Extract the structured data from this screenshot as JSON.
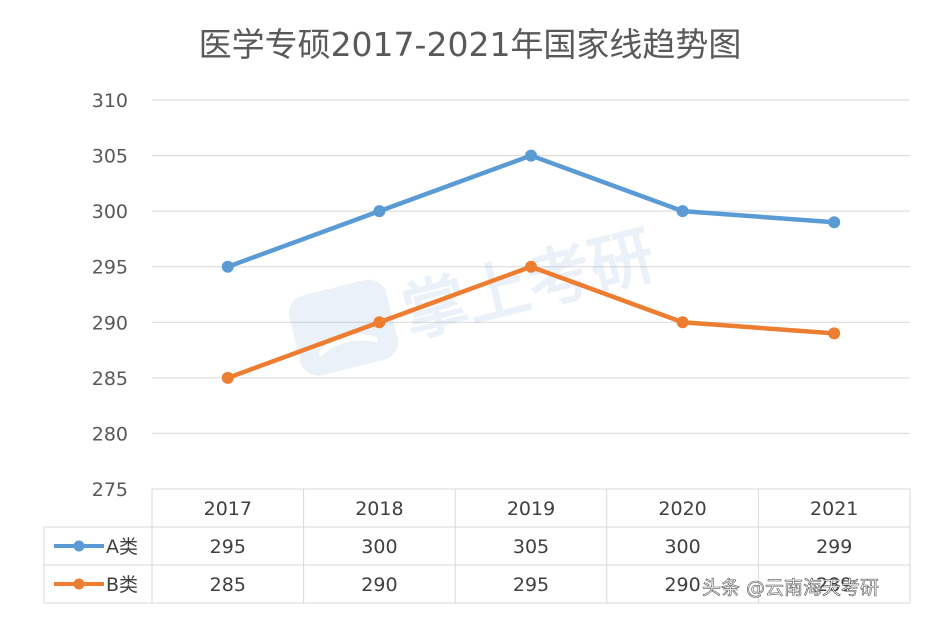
{
  "chart_data": {
    "type": "line",
    "title": "医学专硕2017-2021年国家线趋势图",
    "categories": [
      "2017",
      "2018",
      "2019",
      "2020",
      "2021"
    ],
    "series": [
      {
        "name": "A类",
        "values": [
          295,
          300,
          305,
          300,
          299
        ],
        "color": "#5b9bd5"
      },
      {
        "name": "B类",
        "values": [
          285,
          290,
          295,
          290,
          289
        ],
        "color": "#ed7d31"
      }
    ],
    "ylim": [
      275,
      310
    ],
    "yticks": [
      275,
      280,
      285,
      290,
      295,
      300,
      305,
      310
    ],
    "grid": true,
    "legend": "data-table",
    "data_table": true
  },
  "watermark": {
    "text": "掌上考研"
  },
  "credit": {
    "text": "头条 @云南海天考研"
  }
}
